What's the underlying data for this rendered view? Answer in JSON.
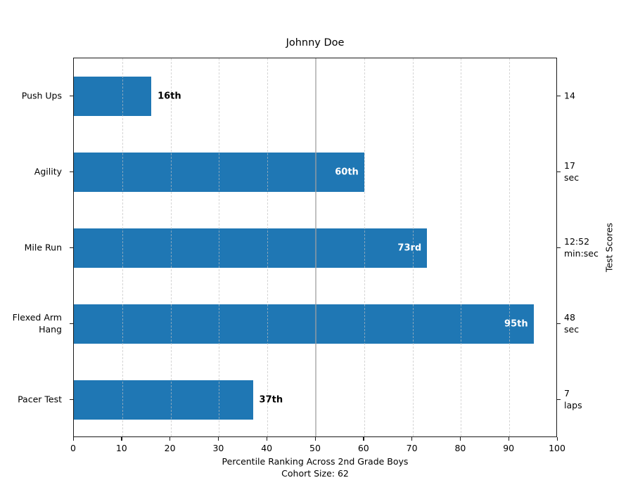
{
  "title": "Johnny Doe",
  "x_axis": {
    "label_line1": "Percentile Ranking Across 2nd Grade Boys",
    "label_line2": "Cohort Size: 62",
    "ticks": [
      0,
      10,
      20,
      30,
      40,
      50,
      60,
      70,
      80,
      90,
      100
    ]
  },
  "right_axis_label": "Test Scores",
  "colors": {
    "bar": "#1f77b4",
    "grid": "#bebebe",
    "median_line": "#a0a0a0",
    "spine": "#1a1a1a",
    "inside_label": "#ffffff",
    "outside_label": "#000000"
  },
  "chart_data": {
    "type": "bar",
    "orientation": "horizontal",
    "title": "Johnny Doe",
    "xlabel": "Percentile Ranking Across 2nd Grade Boys\nCohort Size: 62",
    "ylabel_right": "Test Scores",
    "xlim": [
      0,
      100
    ],
    "xticks": [
      0,
      10,
      20,
      30,
      40,
      50,
      60,
      70,
      80,
      90,
      100
    ],
    "grid": true,
    "grid_style": "dashed-vertical",
    "reference_line_x": 50,
    "categories": [
      "Push Ups",
      "Agility",
      "Mile Run",
      "Flexed Arm\nHang",
      "Pacer Test"
    ],
    "values": [
      16,
      60,
      73,
      95,
      37
    ],
    "percentile_labels": [
      "16th",
      "60th",
      "73rd",
      "95th",
      "37th"
    ],
    "test_score_labels": [
      "14",
      "17\nsec",
      "12:52\nmin:sec",
      "48\nsec",
      "7\nlaps"
    ]
  }
}
